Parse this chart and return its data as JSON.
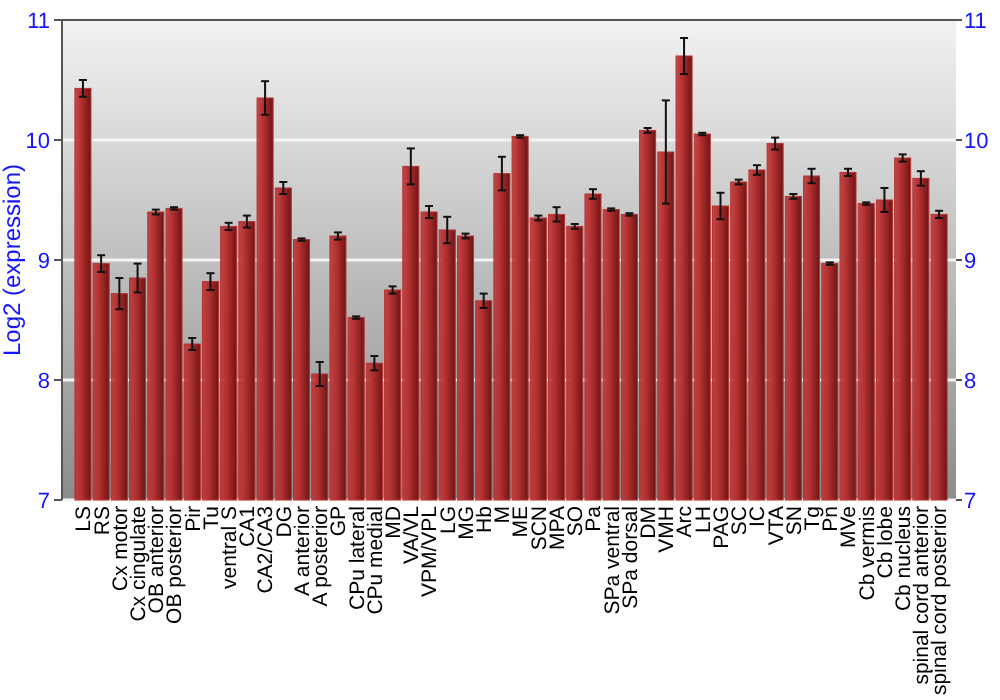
{
  "chart_data": {
    "type": "bar",
    "ylabel": "Log2 (expression)",
    "categories": [
      "LS",
      "RS",
      "Cx motor",
      "Cx cingulate",
      "OB anterior",
      "OB posterior",
      "Pir",
      "Tu",
      "ventral S",
      "CA1",
      "CA2/CA3",
      "DG",
      "A anterior",
      "A posterior",
      "GP",
      "CPu lateral",
      "CPu medial",
      "MD",
      "VA/VL",
      "VPM/VPL",
      "LG",
      "MG",
      "Hb",
      "M",
      "ME",
      "SCN",
      "MPA",
      "SO",
      "Pa",
      "SPa ventral",
      "SPa dorsal",
      "DM",
      "VMH",
      "Arc",
      "LH",
      "PAG",
      "SC",
      "IC",
      "VTA",
      "SN",
      "Tg",
      "Pn",
      "MVe",
      "Cb vermis",
      "Cb lobe",
      "Cb nucleus",
      "spinal cord anterior",
      "spinal cord posterior"
    ],
    "values": [
      10.43,
      8.97,
      8.72,
      8.85,
      9.4,
      9.43,
      8.3,
      8.82,
      9.28,
      9.32,
      10.35,
      9.6,
      9.17,
      8.05,
      9.2,
      8.52,
      8.14,
      8.75,
      9.78,
      9.4,
      9.25,
      9.2,
      8.66,
      9.72,
      10.03,
      9.35,
      9.38,
      9.28,
      9.55,
      9.42,
      9.38,
      10.08,
      9.9,
      10.7,
      10.05,
      9.45,
      9.65,
      9.75,
      9.97,
      9.53,
      9.7,
      8.97,
      9.73,
      9.47,
      9.5,
      9.85,
      9.68,
      9.38
    ],
    "errors": [
      0.07,
      0.07,
      0.13,
      0.12,
      0.02,
      0.01,
      0.05,
      0.07,
      0.03,
      0.05,
      0.14,
      0.05,
      0.01,
      0.1,
      0.03,
      0.01,
      0.06,
      0.03,
      0.15,
      0.05,
      0.11,
      0.02,
      0.06,
      0.14,
      0.01,
      0.02,
      0.06,
      0.02,
      0.04,
      0.01,
      0.01,
      0.02,
      0.43,
      0.15,
      0.01,
      0.11,
      0.02,
      0.04,
      0.05,
      0.02,
      0.06,
      0.01,
      0.03,
      0.01,
      0.1,
      0.03,
      0.06,
      0.03
    ],
    "color": "#b83232",
    "ylim": [
      7,
      11
    ],
    "yticks": [
      7,
      8,
      9,
      10,
      11
    ],
    "y2lim": [
      7,
      11
    ],
    "y2ticks": [
      7,
      8,
      9,
      10,
      11
    ],
    "grid": "y"
  }
}
